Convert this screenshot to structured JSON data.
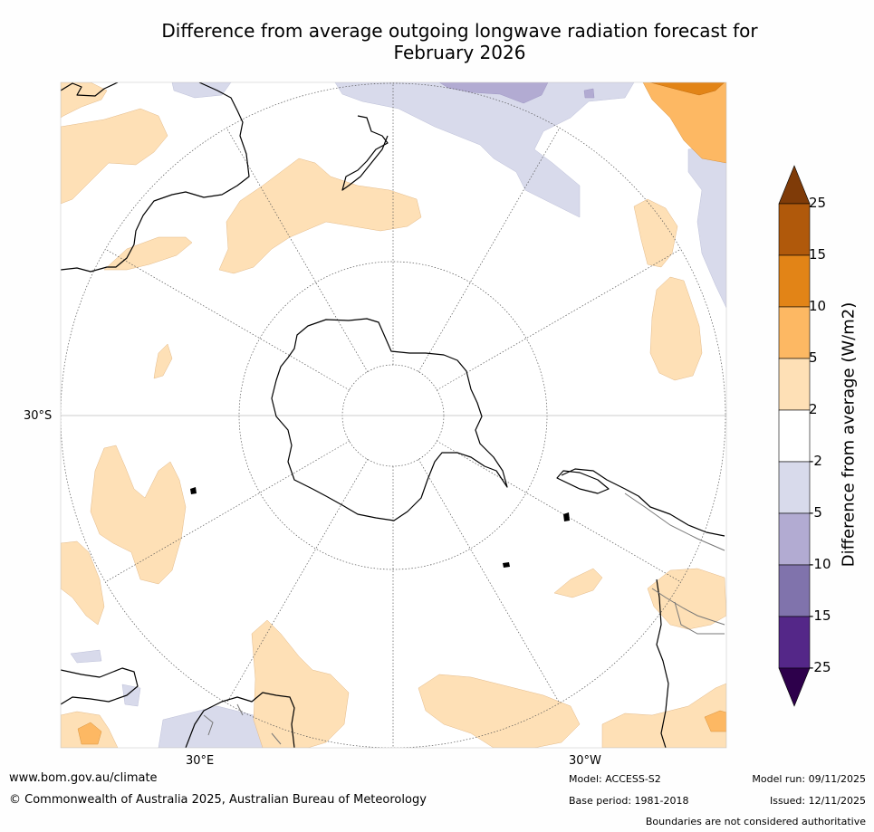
{
  "title": {
    "line1": "Difference from average outgoing longwave radiation forecast for",
    "line2": "February 2026"
  },
  "map": {
    "lat_label": "30°S",
    "lon_label_left": "30°E",
    "lon_label_right": "30°W"
  },
  "colorbar": {
    "label": "Difference from average (W/m2)",
    "ticks": [
      "25",
      "15",
      "10",
      "5",
      "2",
      "-2",
      "-5",
      "-10",
      "-15",
      "-25"
    ],
    "bin_colors": [
      "#b0590b",
      "#e28417",
      "#fdb863",
      "#fee0b6",
      "#ffffff",
      "#d8daeb",
      "#b2abd2",
      "#8073ac",
      "#542788"
    ],
    "upper_extend_color": "#7f3b08",
    "lower_extend_color": "#2d004b"
  },
  "footer": {
    "website": "www.bom.gov.au/climate",
    "copyright": "© Commonwealth of Australia 2025, Australian Bureau of Meteorology",
    "model": "Model: ACCESS-S2",
    "base_period": "Base period: 1981-2018",
    "model_run": "Model run: 09/11/2025",
    "issued": "Issued: 12/11/2025",
    "disclaimer": "Boundaries are not considered authoritative"
  }
}
